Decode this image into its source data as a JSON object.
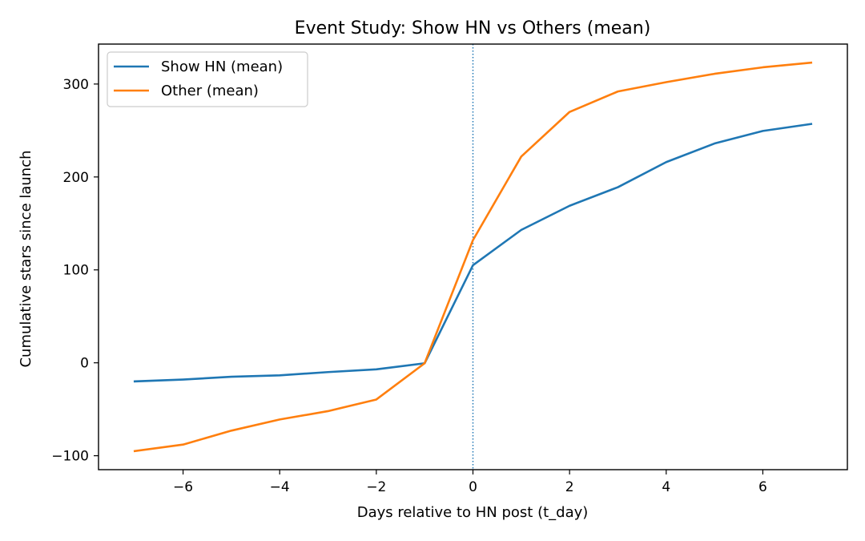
{
  "chart_data": {
    "type": "line",
    "title": "Event Study: Show HN vs Others (mean)",
    "xlabel": "Days relative to HN post (t_day)",
    "ylabel": "Cumulative stars since launch",
    "xlim": [
      -7.75,
      7.75
    ],
    "ylim": [
      -115,
      343
    ],
    "xticks": [
      -6,
      -4,
      -2,
      0,
      2,
      4,
      6
    ],
    "xtick_labels": [
      "−6",
      "−4",
      "−2",
      "0",
      "2",
      "4",
      "6"
    ],
    "yticks": [
      -100,
      0,
      100,
      200,
      300
    ],
    "ytick_labels": [
      "−100",
      "0",
      "100",
      "200",
      "300"
    ],
    "grid": false,
    "legend_position": "top-left",
    "event_line": {
      "x": 0,
      "style": "dotted",
      "color": "#1f77b4"
    },
    "x": [
      -7,
      -6,
      -5,
      -4,
      -3,
      -2,
      -1,
      0,
      1,
      2,
      3,
      4,
      5,
      6,
      7
    ],
    "series": [
      {
        "name": "Show HN (mean)",
        "color": "#1f77b4",
        "values": [
          -20,
          -18,
          -15,
          -13.5,
          -10,
          -7,
          -0.5,
          105,
          143,
          169,
          189,
          216,
          236,
          249.5,
          257
        ]
      },
      {
        "name": "Other (mean)",
        "color": "#ff7f0e",
        "values": [
          -95,
          -88,
          -73,
          -61,
          -52,
          -39.5,
          -0.5,
          132,
          222,
          270,
          292,
          302,
          311,
          318,
          323
        ]
      }
    ]
  }
}
